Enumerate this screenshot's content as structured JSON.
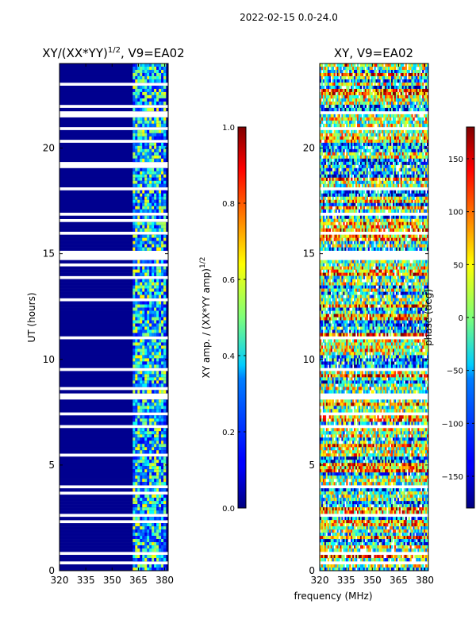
{
  "chart_data": [
    {
      "type": "heatmap",
      "title": "XY/(XX*YY)",
      "title_exponent": "1/2",
      "title_suffix": ", V9=EA02",
      "xlabel": "",
      "ylabel": "UT (hours)",
      "xlim": [
        320,
        382
      ],
      "ylim": [
        0,
        24
      ],
      "xticks": [
        320,
        335,
        350,
        365,
        380
      ],
      "yticks": [
        0,
        5,
        10,
        15,
        20
      ],
      "colormap": "jet",
      "colorbar": {
        "label": "XY amp. / (XX*YY amp)",
        "label_exponent": "1/2",
        "range": [
          0.0,
          1.0
        ],
        "ticks": [
          "0.0",
          "0.2",
          "0.4",
          "0.6",
          "0.8",
          "1.0"
        ]
      }
    },
    {
      "type": "heatmap",
      "title": "XY, V9=EA02",
      "xlabel": "frequency (MHz)",
      "ylabel": "",
      "xlim": [
        320,
        382
      ],
      "ylim": [
        0,
        24
      ],
      "xticks": [
        320,
        335,
        350,
        365,
        380
      ],
      "yticks": [
        0,
        5,
        10,
        15,
        20
      ],
      "colormap": "jet",
      "colorbar": {
        "label": "phase (deg)",
        "range": [
          -180,
          180
        ],
        "ticks": [
          "−150",
          "−100",
          "−50",
          "0",
          "50",
          "100",
          "150"
        ]
      }
    }
  ],
  "suptitle": "2022-02-15 0.0-24.0"
}
